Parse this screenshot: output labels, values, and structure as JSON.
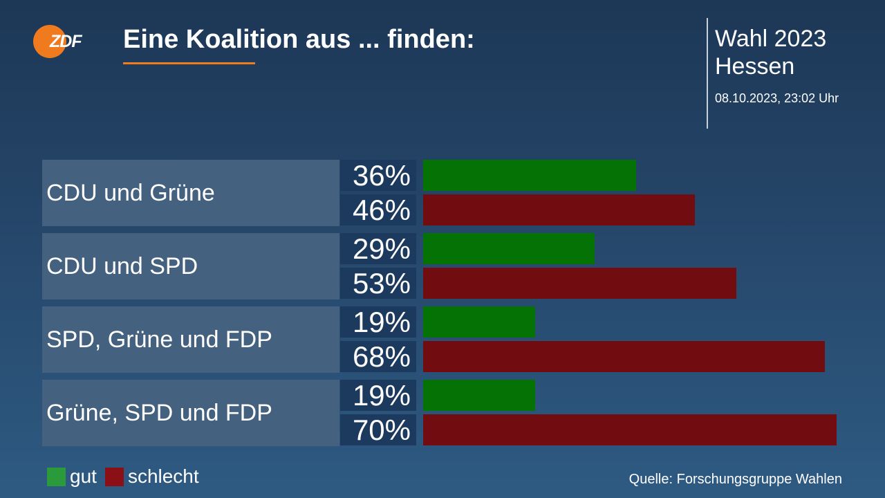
{
  "brand": {
    "logo_text": "ZDF"
  },
  "header": {
    "title": "Eine Koalition aus ... finden:"
  },
  "election": {
    "line1": "Wahl 2023",
    "line2": "Hessen",
    "timestamp": "08.10.2023, 23:02 Uhr"
  },
  "colors": {
    "gut": "#057206",
    "schlecht": "#710d10",
    "accent": "#f07a1e"
  },
  "legend": {
    "gut": "gut",
    "schlecht": "schlecht"
  },
  "source": "Quelle: Forschungsgruppe Wahlen",
  "chart_data": {
    "type": "bar",
    "title": "Eine Koalition aus ... finden:",
    "categories": [
      "CDU und Grüne",
      "CDU und SPD",
      "SPD, Grüne und FDP",
      "Grüne, SPD und FDP"
    ],
    "series": [
      {
        "name": "gut",
        "values": [
          36,
          29,
          19,
          19
        ],
        "labels": [
          "36%",
          "29%",
          "19%",
          "19%"
        ]
      },
      {
        "name": "schlecht",
        "values": [
          46,
          53,
          68,
          70
        ],
        "labels": [
          "46%",
          "53%",
          "68%",
          "70%"
        ]
      }
    ],
    "xlim": [
      0,
      70
    ],
    "legend_position": "bottom-left"
  }
}
